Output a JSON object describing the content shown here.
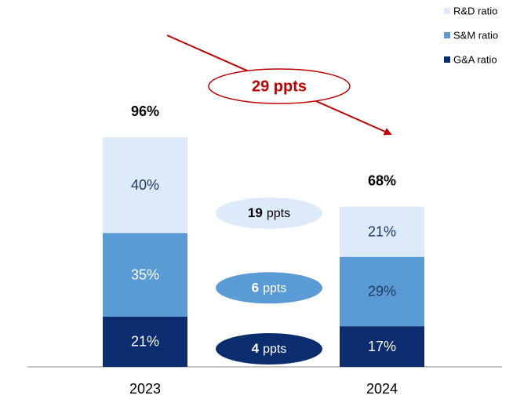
{
  "chart_data": {
    "type": "stacked_bar",
    "categories": [
      "2023",
      "2024"
    ],
    "series": [
      {
        "name": "G&A ratio",
        "color": "#0b2c6e",
        "values": [
          21,
          17
        ],
        "value_labels": [
          "21%",
          "17%"
        ],
        "label_colors": [
          "#ffffff",
          "#ffffff"
        ]
      },
      {
        "name": "S&M ratio",
        "color": "#5b9bd5",
        "values": [
          35,
          29
        ],
        "value_labels": [
          "35%",
          "29%"
        ],
        "label_colors": [
          "#ffffff",
          "#1f3864"
        ]
      },
      {
        "name": "R&D ratio",
        "color": "#ddeafa",
        "values": [
          40,
          21
        ],
        "value_labels": [
          "40%",
          "21%"
        ],
        "label_colors": [
          "#1f3864",
          "#1f3864"
        ]
      }
    ],
    "total_labels": [
      "96%",
      "68%"
    ],
    "ylim": [
      0,
      100
    ],
    "total_change": "29 ppts",
    "segment_changes": [
      {
        "bold": "4",
        "text": "ppts",
        "text_color": "#ffffff"
      },
      {
        "bold": "6",
        "text": "ppts",
        "text_color": "#ffffff"
      },
      {
        "bold": "19",
        "text": "ppts",
        "text_color": "#000000"
      }
    ]
  }
}
